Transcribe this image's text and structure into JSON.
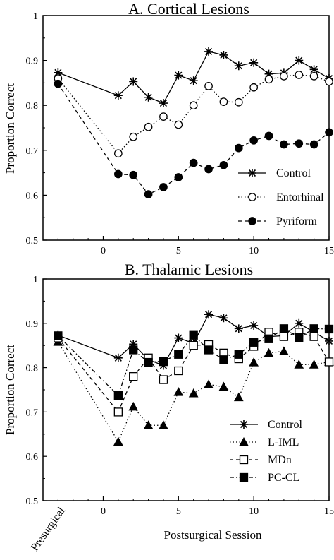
{
  "chart_data": [
    {
      "type": "line",
      "title": "A. Cortical Lesions",
      "ylabel": "Proportion Correct",
      "xlabel": "",
      "ylim": [
        0.5,
        1
      ],
      "xlim": [
        -4,
        15
      ],
      "yticks": [
        0.5,
        0.6,
        0.7,
        0.8,
        0.9,
        1
      ],
      "yticklabels": [
        "0.5",
        "0.6",
        "0.7",
        "0.8",
        "0.9",
        "1"
      ],
      "xticks": [
        0,
        5,
        10,
        15
      ],
      "xticklabels": [
        "0",
        "5",
        "10",
        "15"
      ],
      "grid": false,
      "legend_position": "bottom-right",
      "series": [
        {
          "name": "Control",
          "marker": "star",
          "dash": "solid",
          "x": [
            -3,
            1,
            2,
            3,
            4,
            5,
            6,
            7,
            8,
            9,
            10,
            11,
            12,
            13,
            14,
            15
          ],
          "values": [
            0.873,
            0.822,
            0.853,
            0.818,
            0.805,
            0.867,
            0.855,
            0.92,
            0.912,
            0.888,
            0.895,
            0.87,
            0.872,
            0.9,
            0.88,
            0.86
          ]
        },
        {
          "name": "Entorhinal",
          "marker": "open-circle",
          "dash": "dotted",
          "x": [
            -3,
            1,
            2,
            3,
            4,
            5,
            6,
            7,
            8,
            9,
            10,
            11,
            12,
            13,
            14,
            15
          ],
          "values": [
            0.86,
            0.693,
            0.73,
            0.752,
            0.775,
            0.757,
            0.8,
            0.843,
            0.808,
            0.807,
            0.84,
            0.858,
            0.865,
            0.868,
            0.865,
            0.853
          ]
        },
        {
          "name": "Pyriform",
          "marker": "filled-circle",
          "dash": "dashed",
          "x": [
            -3,
            1,
            2,
            3,
            4,
            5,
            6,
            7,
            8,
            9,
            10,
            11,
            12,
            13,
            14,
            15
          ],
          "values": [
            0.848,
            0.647,
            0.645,
            0.602,
            0.618,
            0.64,
            0.672,
            0.658,
            0.667,
            0.705,
            0.722,
            0.732,
            0.713,
            0.715,
            0.713,
            0.74
          ]
        }
      ]
    },
    {
      "type": "line",
      "title": "B. Thalamic Lesions",
      "ylabel": "Proportion Correct",
      "xlabel": "Postsurgical Session",
      "extra_xticklabel": "Presurgical",
      "ylim": [
        0.5,
        1
      ],
      "xlim": [
        -4,
        15
      ],
      "yticks": [
        0.5,
        0.6,
        0.7,
        0.8,
        0.9,
        1
      ],
      "yticklabels": [
        "0.5",
        "0.6",
        "0.7",
        "0.8",
        "0.9",
        "1"
      ],
      "xticks": [
        0,
        5,
        10,
        15
      ],
      "xticklabels": [
        "0",
        "5",
        "10",
        "15"
      ],
      "grid": false,
      "legend_position": "bottom-right",
      "series": [
        {
          "name": "Control",
          "marker": "star",
          "dash": "solid",
          "x": [
            -3,
            1,
            2,
            3,
            4,
            5,
            6,
            7,
            8,
            9,
            10,
            11,
            12,
            13,
            14,
            15
          ],
          "values": [
            0.873,
            0.822,
            0.853,
            0.818,
            0.805,
            0.867,
            0.855,
            0.92,
            0.912,
            0.888,
            0.895,
            0.87,
            0.872,
            0.9,
            0.88,
            0.86
          ]
        },
        {
          "name": "L-IML",
          "marker": "filled-triangle",
          "dash": "dotted",
          "x": [
            -3,
            1,
            2,
            3,
            4,
            5,
            6,
            7,
            8,
            9,
            10,
            11,
            12,
            13,
            14,
            15
          ],
          "values": [
            0.858,
            0.633,
            0.712,
            0.67,
            0.67,
            0.745,
            0.742,
            0.762,
            0.757,
            0.733,
            0.812,
            0.833,
            0.837,
            0.807,
            0.807,
            0.813
          ]
        },
        {
          "name": "MDn",
          "marker": "open-square",
          "dash": "dashed",
          "x": [
            -3,
            1,
            2,
            3,
            4,
            5,
            6,
            7,
            8,
            9,
            10,
            11,
            12,
            13,
            14,
            15
          ],
          "values": [
            0.867,
            0.7,
            0.78,
            0.822,
            0.773,
            0.793,
            0.85,
            0.852,
            0.833,
            0.82,
            0.848,
            0.88,
            0.87,
            0.88,
            0.87,
            0.813
          ]
        },
        {
          "name": "PC-CL",
          "marker": "filled-square",
          "dash": "dashdot",
          "x": [
            -3,
            1,
            2,
            3,
            4,
            5,
            6,
            7,
            8,
            9,
            10,
            11,
            12,
            13,
            14,
            15
          ],
          "values": [
            0.872,
            0.737,
            0.84,
            0.812,
            0.815,
            0.83,
            0.873,
            0.84,
            0.818,
            0.83,
            0.857,
            0.865,
            0.888,
            0.868,
            0.888,
            0.887
          ]
        }
      ]
    }
  ]
}
